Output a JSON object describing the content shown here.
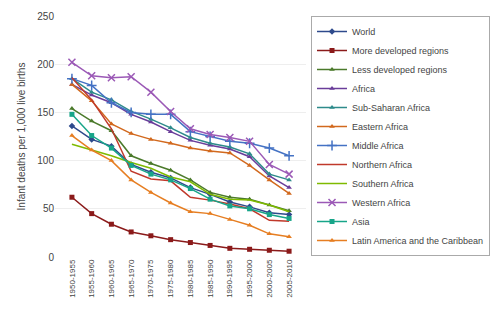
{
  "chart_data": {
    "type": "line",
    "categories": [
      "1950-1955",
      "1955-1960",
      "1960-1965",
      "1965-1970",
      "1970-1975",
      "1975-1980",
      "1980-1985",
      "1985-1990",
      "1990-1995",
      "1995-2000",
      "2000-2005",
      "2005-2010"
    ],
    "series": [
      {
        "name": "World",
        "color": "#2E4A8C",
        "marker": "diamond",
        "values": [
          136,
          122,
          115,
          96,
          88,
          82,
          72,
          65,
          57,
          52,
          46,
          44
        ]
      },
      {
        "name": "More developed regions",
        "color": "#8B1A1A",
        "marker": "square",
        "values": [
          62,
          45,
          34,
          26,
          22,
          18,
          15,
          12,
          9,
          8,
          7,
          6
        ]
      },
      {
        "name": "Less developed regions",
        "color": "#4B7A2B",
        "marker": "triangle-up",
        "values": [
          154,
          141,
          131,
          105,
          97,
          90,
          80,
          67,
          62,
          60,
          54,
          48
        ]
      },
      {
        "name": "Africa",
        "color": "#6A3D9A",
        "marker": "triangle-up",
        "values": [
          179,
          168,
          160,
          148,
          140,
          130,
          121,
          116,
          112,
          104,
          84,
          72
        ]
      },
      {
        "name": "Sub-Saharan Africa",
        "color": "#2E8B8B",
        "marker": "triangle-up",
        "values": [
          185,
          171,
          163,
          151,
          143,
          134,
          124,
          118,
          114,
          107,
          86,
          80
        ]
      },
      {
        "name": "Eastern Africa",
        "color": "#D2691E",
        "marker": "triangle-up",
        "values": [
          179,
          162,
          138,
          128,
          122,
          118,
          113,
          110,
          108,
          95,
          80,
          66
        ]
      },
      {
        "name": "Middle Africa",
        "color": "#4472C4",
        "marker": "cross",
        "values": [
          185,
          178,
          160,
          150,
          148,
          148,
          130,
          125,
          120,
          118,
          113,
          105
        ]
      },
      {
        "name": "Northern Africa",
        "color": "#C0392B",
        "marker": "none",
        "values": [
          186,
          163,
          133,
          89,
          81,
          79,
          62,
          59,
          55,
          50,
          38,
          37
        ]
      },
      {
        "name": "Southern Africa",
        "color": "#7FBA00",
        "marker": "none",
        "values": [
          117,
          111,
          105,
          98,
          92,
          83,
          78,
          65,
          60,
          59,
          54,
          47
        ]
      },
      {
        "name": "Western Africa",
        "color": "#9B59B6",
        "marker": "x",
        "values": [
          202,
          188,
          186,
          187,
          171,
          151,
          133,
          127,
          124,
          120,
          96,
          86
        ]
      },
      {
        "name": "Asia",
        "color": "#17A589",
        "marker": "square",
        "values": [
          148,
          126,
          113,
          95,
          86,
          80,
          71,
          60,
          53,
          50,
          44,
          40
        ]
      },
      {
        "name": "Latin America and the Caribbean",
        "color": "#E67E22",
        "marker": "triangle-up",
        "values": [
          126,
          111,
          100,
          80,
          67,
          56,
          47,
          45,
          39,
          33,
          24,
          21
        ]
      }
    ],
    "ylabel": "Infant deaths per 1,000 live births",
    "ylim": [
      0,
      250
    ],
    "yticks": [
      0,
      50,
      100,
      150,
      200,
      250
    ],
    "grid": true,
    "legend": "right",
    "line_style": "solid"
  }
}
